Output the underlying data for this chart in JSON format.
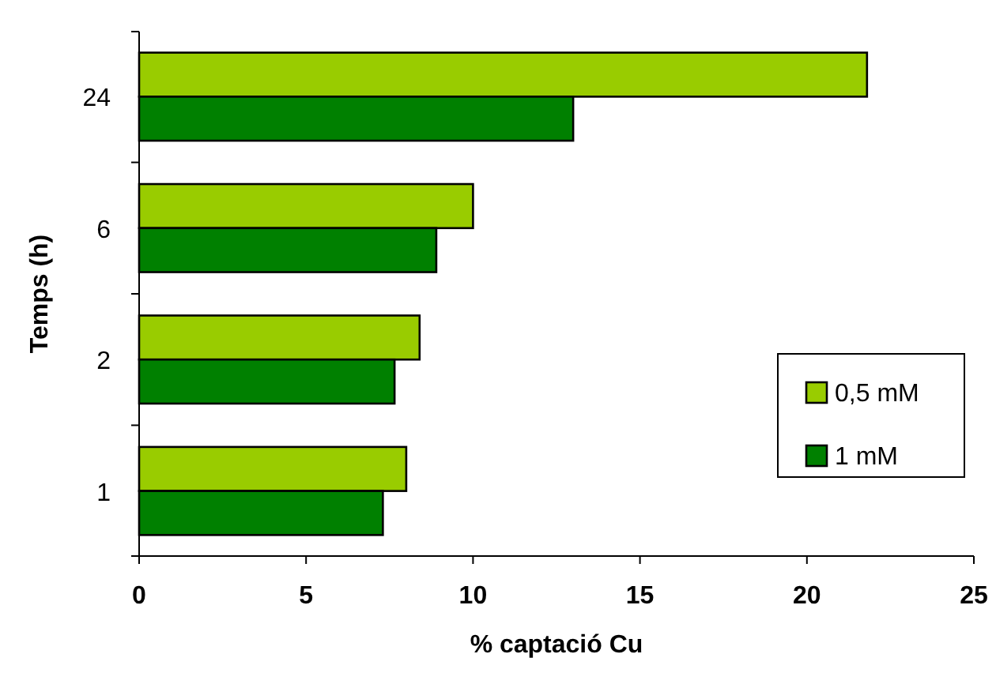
{
  "chart_data": {
    "type": "bar",
    "orientation": "horizontal",
    "xlabel": "% captació Cu",
    "ylabel": "Temps (h)",
    "categories": [
      "24",
      "6",
      "2",
      "1"
    ],
    "series": [
      {
        "name": "0,5 mM",
        "color": "#99cc00",
        "values": [
          21.8,
          10.0,
          8.4,
          8.0
        ]
      },
      {
        "name": "1 mM",
        "color": "#008000",
        "values": [
          13.0,
          8.9,
          7.65,
          7.3
        ]
      }
    ],
    "xlim": [
      0,
      25
    ],
    "xticks": [
      0,
      5,
      10,
      15,
      20,
      25
    ],
    "grid": false,
    "legend": "bottom right"
  }
}
